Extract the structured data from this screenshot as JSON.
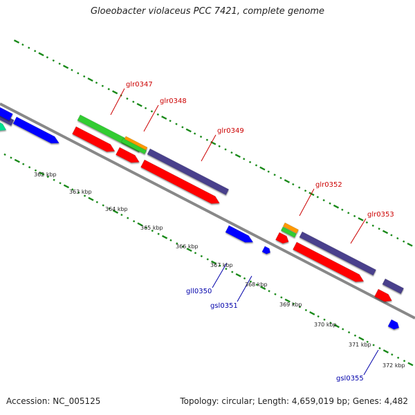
{
  "title": "Gloeobacter violaceus PCC 7421, complete genome",
  "footer": {
    "accession": "Accession: NC_005125",
    "summary": "Topology: circular; Length: 4,659,019 bp; Genes: 4,482"
  },
  "colors": {
    "backbone": "#888888",
    "tick_marks": "#1a8a1a",
    "forward_label": "#cc0000",
    "reverse_label": "#0000aa",
    "cds": "#ff0000",
    "gene": "#0000ff",
    "feature_green": "#33cc33",
    "feature_teal": "#00e090",
    "feature_orange": "#ff9900",
    "feature_purple": "#4a3f8c"
  },
  "scale_labels": [
    "362 kbp",
    "363 kbp",
    "364 kbp",
    "365 kbp",
    "366 kbp",
    "367 kbp",
    "368 kbp",
    "369 kbp",
    "370 kbp",
    "371 kbp",
    "372 kbp"
  ],
  "gene_labels": {
    "forward": [
      "glr0347",
      "glr0348",
      "glr0349",
      "glr0352",
      "glr0353"
    ],
    "reverse": [
      "gll0350",
      "gsl0351",
      "gsl0355"
    ]
  }
}
